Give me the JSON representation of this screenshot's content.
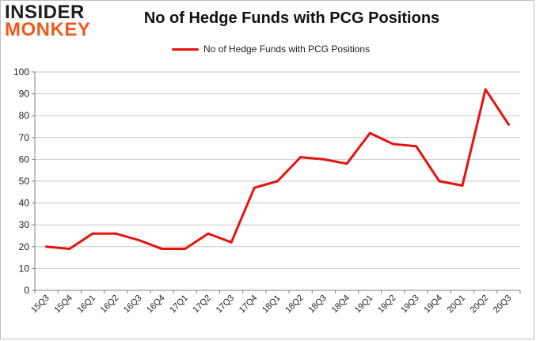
{
  "logo": {
    "line1": "INSIDER",
    "line2": "MONKEY"
  },
  "colors": {
    "line": "#e8120c",
    "grid": "#c8c8c8",
    "axis": "#808080"
  },
  "chart_data": {
    "type": "line",
    "title": "No of Hedge Funds with PCG Positions",
    "xlabel": "",
    "ylabel": "",
    "ylim": [
      0,
      100
    ],
    "yticks": [
      0,
      10,
      20,
      30,
      40,
      50,
      60,
      70,
      80,
      90,
      100
    ],
    "grid": true,
    "legend_position": "top",
    "categories": [
      "15Q3",
      "15Q4",
      "16Q1",
      "16Q2",
      "16Q3",
      "16Q4",
      "17Q1",
      "17Q2",
      "17Q3",
      "17Q4",
      "18Q1",
      "18Q2",
      "18Q3",
      "18Q4",
      "19Q1",
      "19Q2",
      "19Q3",
      "19Q4",
      "20Q1",
      "20Q2",
      "20Q3"
    ],
    "series": [
      {
        "name": "No of Hedge Funds with PCG Positions",
        "values": [
          20,
          19,
          26,
          26,
          23,
          19,
          19,
          26,
          22,
          47,
          50,
          61,
          60,
          58,
          72,
          67,
          66,
          50,
          48,
          92,
          76
        ]
      }
    ]
  }
}
